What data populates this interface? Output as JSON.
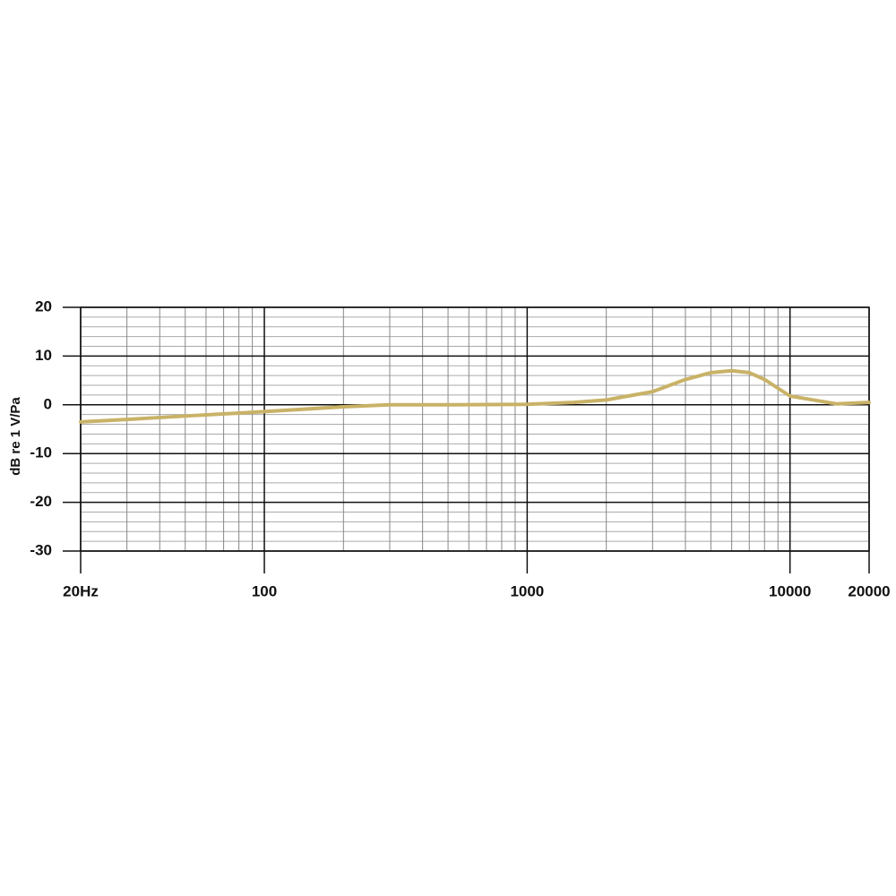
{
  "chart_data": {
    "type": "line",
    "ylabel": "dB re 1 V/Pa",
    "x": [
      20,
      30,
      50,
      100,
      200,
      300,
      500,
      1000,
      1500,
      2000,
      3000,
      4000,
      5000,
      6000,
      7000,
      8000,
      10000,
      15000,
      20000
    ],
    "values": [
      -3.5,
      -3.0,
      -2.3,
      -1.4,
      -0.4,
      0,
      0,
      0.1,
      0.5,
      1.0,
      2.7,
      5.2,
      6.6,
      7.0,
      6.6,
      5.2,
      1.8,
      0.2,
      0.5
    ],
    "color": "#c9b267",
    "xscale": "log",
    "xlim": [
      20,
      20000
    ],
    "xticks": [
      {
        "value": 20,
        "label": "20Hz"
      },
      100,
      1000,
      10000,
      20000
    ],
    "ylim": [
      -30,
      20
    ],
    "yticks": [
      -30,
      -20,
      -10,
      0,
      10,
      20
    ],
    "grid": true
  }
}
